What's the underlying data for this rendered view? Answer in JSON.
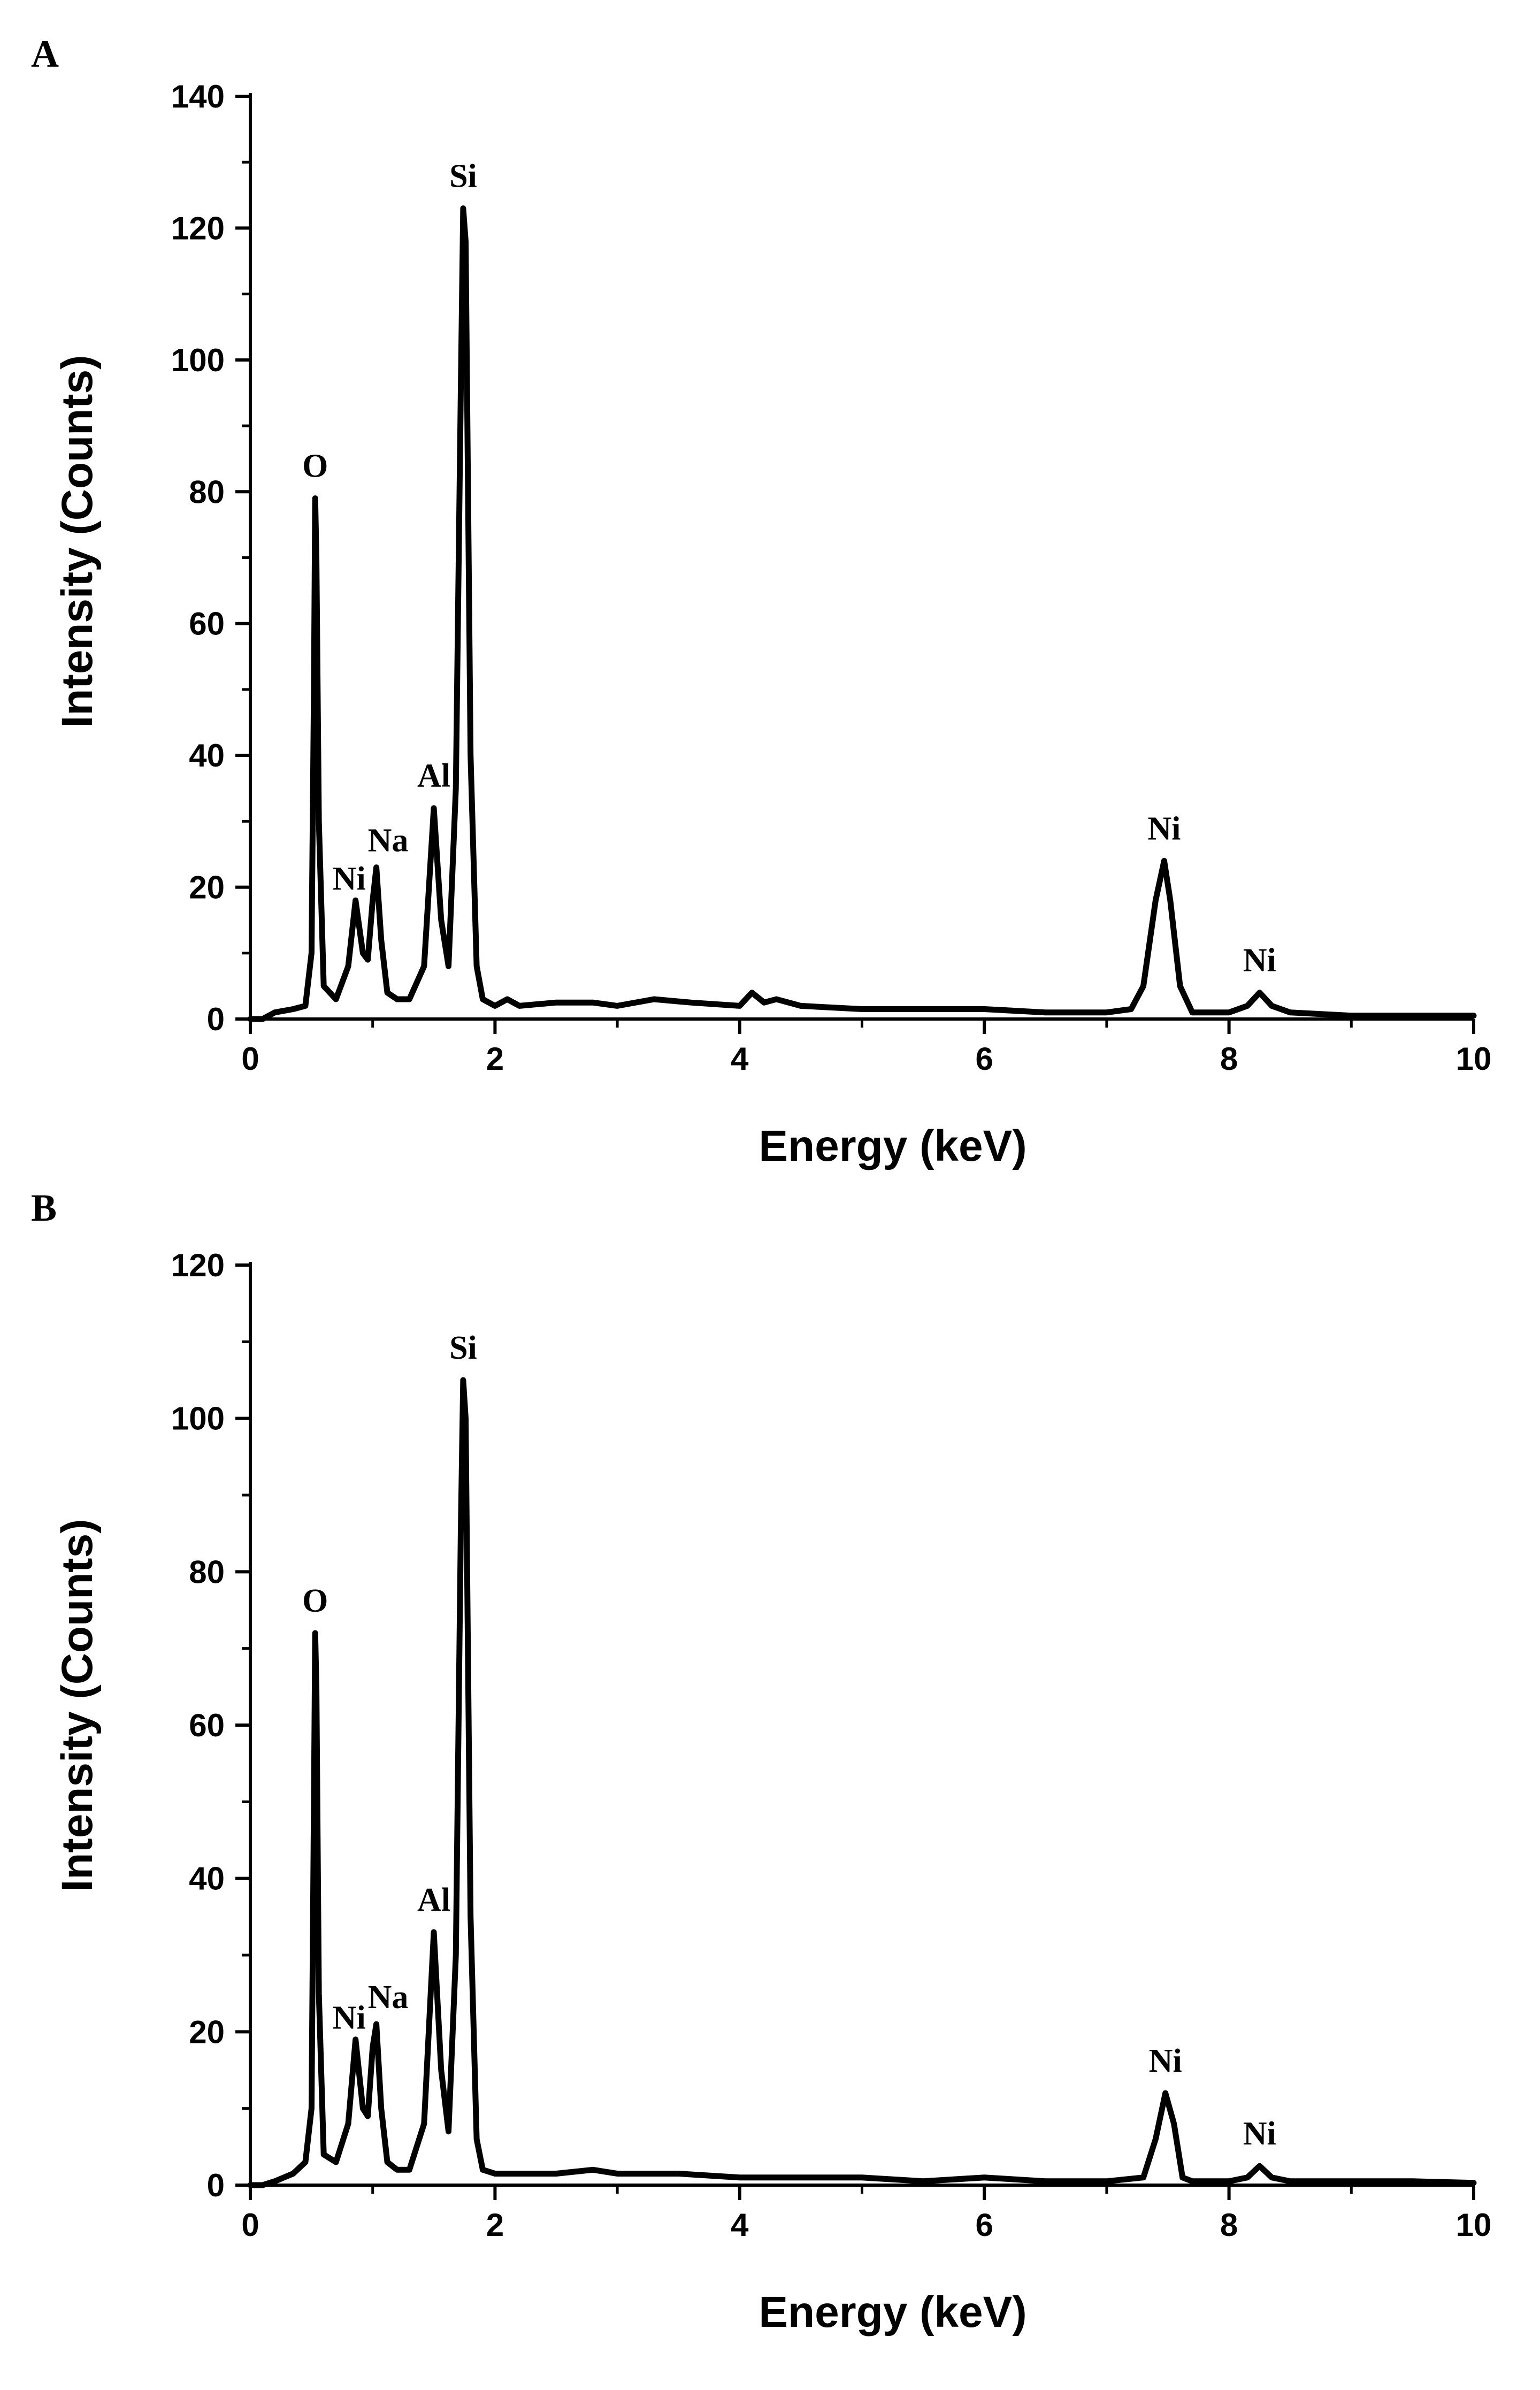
{
  "chart_data": [
    {
      "panel": "A",
      "type": "line",
      "xlabel": "Energy (keV)",
      "ylabel": "Intensity (Counts)",
      "xlim": [
        0,
        10
      ],
      "ylim": [
        0,
        140
      ],
      "xticks": [
        0,
        2,
        4,
        6,
        8,
        10
      ],
      "yticks": [
        0,
        20,
        40,
        60,
        80,
        100,
        120,
        140
      ],
      "grid": false,
      "baseline": [
        [
          0,
          0
        ],
        [
          0.1,
          0
        ],
        [
          0.2,
          1
        ],
        [
          0.35,
          1.5
        ],
        [
          0.45,
          2
        ],
        [
          0.5,
          10
        ],
        [
          0.52,
          50
        ],
        [
          0.53,
          79
        ],
        [
          0.54,
          70
        ],
        [
          0.56,
          30
        ],
        [
          0.6,
          5
        ],
        [
          0.7,
          3
        ],
        [
          0.8,
          8
        ],
        [
          0.86,
          18
        ],
        [
          0.92,
          10
        ],
        [
          0.96,
          9
        ],
        [
          1.0,
          18
        ],
        [
          1.03,
          23
        ],
        [
          1.07,
          12
        ],
        [
          1.12,
          4
        ],
        [
          1.2,
          3
        ],
        [
          1.3,
          3
        ],
        [
          1.42,
          8
        ],
        [
          1.5,
          32
        ],
        [
          1.56,
          15
        ],
        [
          1.62,
          8
        ],
        [
          1.68,
          35
        ],
        [
          1.72,
          95
        ],
        [
          1.74,
          123
        ],
        [
          1.76,
          118
        ],
        [
          1.8,
          40
        ],
        [
          1.85,
          8
        ],
        [
          1.9,
          3
        ],
        [
          2.0,
          2
        ],
        [
          2.1,
          3
        ],
        [
          2.2,
          2
        ],
        [
          2.5,
          2.5
        ],
        [
          2.8,
          2.5
        ],
        [
          3.0,
          2
        ],
        [
          3.3,
          3
        ],
        [
          3.6,
          2.5
        ],
        [
          4.0,
          2
        ],
        [
          4.1,
          4
        ],
        [
          4.2,
          2.5
        ],
        [
          4.3,
          3
        ],
        [
          4.5,
          2
        ],
        [
          5.0,
          1.5
        ],
        [
          5.5,
          1.5
        ],
        [
          6.0,
          1.5
        ],
        [
          6.5,
          1
        ],
        [
          7.0,
          1
        ],
        [
          7.2,
          1.5
        ],
        [
          7.3,
          5
        ],
        [
          7.4,
          18
        ],
        [
          7.47,
          24
        ],
        [
          7.52,
          18
        ],
        [
          7.6,
          5
        ],
        [
          7.7,
          1
        ],
        [
          8.0,
          1
        ],
        [
          8.15,
          2
        ],
        [
          8.25,
          4
        ],
        [
          8.35,
          2
        ],
        [
          8.5,
          1
        ],
        [
          9.0,
          0.5
        ],
        [
          9.5,
          0.5
        ],
        [
          10.0,
          0.5
        ]
      ],
      "peaks": [
        {
          "label": "O",
          "x": 0.53,
          "y": 79
        },
        {
          "label": "Ni",
          "x": 0.86,
          "y": 18
        },
        {
          "label": "Na",
          "x": 1.03,
          "y": 23
        },
        {
          "label": "Al",
          "x": 1.5,
          "y": 32
        },
        {
          "label": "Si",
          "x": 1.74,
          "y": 123
        },
        {
          "label": "Ni",
          "x": 7.47,
          "y": 24
        },
        {
          "label": "Ni",
          "x": 8.25,
          "y": 4
        }
      ]
    },
    {
      "panel": "B",
      "type": "line",
      "xlabel": "Energy (keV)",
      "ylabel": "Intensity (Counts)",
      "xlim": [
        0,
        10
      ],
      "ylim": [
        0,
        120
      ],
      "xticks": [
        0,
        2,
        4,
        6,
        8,
        10
      ],
      "yticks": [
        0,
        20,
        40,
        60,
        80,
        100,
        120
      ],
      "grid": false,
      "baseline": [
        [
          0,
          0
        ],
        [
          0.1,
          0
        ],
        [
          0.2,
          0.5
        ],
        [
          0.35,
          1.5
        ],
        [
          0.45,
          3
        ],
        [
          0.5,
          10
        ],
        [
          0.52,
          50
        ],
        [
          0.53,
          72
        ],
        [
          0.54,
          65
        ],
        [
          0.56,
          25
        ],
        [
          0.6,
          4
        ],
        [
          0.7,
          3
        ],
        [
          0.8,
          8
        ],
        [
          0.86,
          19
        ],
        [
          0.92,
          10
        ],
        [
          0.96,
          9
        ],
        [
          1.0,
          18
        ],
        [
          1.03,
          21
        ],
        [
          1.07,
          10
        ],
        [
          1.12,
          3
        ],
        [
          1.2,
          2
        ],
        [
          1.3,
          2
        ],
        [
          1.42,
          8
        ],
        [
          1.5,
          33
        ],
        [
          1.56,
          15
        ],
        [
          1.62,
          7
        ],
        [
          1.68,
          30
        ],
        [
          1.72,
          85
        ],
        [
          1.74,
          105
        ],
        [
          1.76,
          100
        ],
        [
          1.8,
          35
        ],
        [
          1.85,
          6
        ],
        [
          1.9,
          2
        ],
        [
          2.0,
          1.5
        ],
        [
          2.5,
          1.5
        ],
        [
          2.8,
          2
        ],
        [
          3.0,
          1.5
        ],
        [
          3.5,
          1.5
        ],
        [
          4.0,
          1
        ],
        [
          4.5,
          1
        ],
        [
          5.0,
          1
        ],
        [
          5.5,
          0.5
        ],
        [
          6.0,
          1
        ],
        [
          6.5,
          0.5
        ],
        [
          7.0,
          0.5
        ],
        [
          7.3,
          1
        ],
        [
          7.4,
          6
        ],
        [
          7.48,
          12
        ],
        [
          7.55,
          8
        ],
        [
          7.62,
          1
        ],
        [
          7.7,
          0.5
        ],
        [
          8.0,
          0.5
        ],
        [
          8.15,
          1
        ],
        [
          8.25,
          2.5
        ],
        [
          8.35,
          1
        ],
        [
          8.5,
          0.5
        ],
        [
          9.0,
          0.5
        ],
        [
          9.5,
          0.5
        ],
        [
          10.0,
          0.3
        ]
      ],
      "peaks": [
        {
          "label": "O",
          "x": 0.53,
          "y": 72
        },
        {
          "label": "Ni",
          "x": 0.86,
          "y": 19
        },
        {
          "label": "Na",
          "x": 1.03,
          "y": 21
        },
        {
          "label": "Al",
          "x": 1.5,
          "y": 33
        },
        {
          "label": "Si",
          "x": 1.74,
          "y": 105
        },
        {
          "label": "Ni",
          "x": 7.48,
          "y": 12
        },
        {
          "label": "Ni",
          "x": 8.25,
          "y": 2.5
        }
      ]
    }
  ],
  "colors": {
    "line": "#000000",
    "axis": "#000000",
    "background": "#ffffff"
  }
}
